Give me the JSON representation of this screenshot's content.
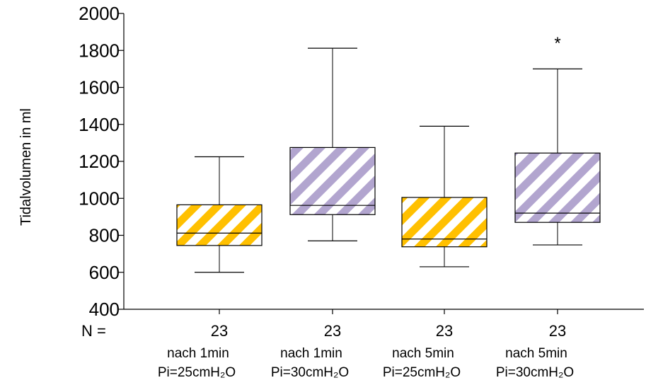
{
  "chart_data": {
    "type": "boxplot",
    "ylabel": "Tidalvolumen in ml",
    "ylim": [
      400,
      2000
    ],
    "yticks": [
      400,
      600,
      800,
      1000,
      1200,
      1400,
      1600,
      1800,
      2000
    ],
    "n_label": "N =",
    "groups": [
      {
        "line1": "nach 1min",
        "line2": "Pi=25cmH₂O",
        "n": "23",
        "pattern": "yellow",
        "whisker_low": 600,
        "q1": 745,
        "median": 812,
        "q3": 965,
        "whisker_high": 1225,
        "outliers": []
      },
      {
        "line1": "nach 1min",
        "line2": "Pi=30cmH₂O",
        "n": "23",
        "pattern": "purple",
        "whisker_low": 770,
        "q1": 912,
        "median": 962,
        "q3": 1275,
        "whisker_high": 1812,
        "outliers": []
      },
      {
        "line1": "nach 5min",
        "line2": "Pi=25cmH₂O",
        "n": "23",
        "pattern": "yellow",
        "whisker_low": 630,
        "q1": 738,
        "median": 780,
        "q3": 1005,
        "whisker_high": 1390,
        "outliers": []
      },
      {
        "line1": "nach 5min",
        "line2": "Pi=30cmH₂O",
        "n": "23",
        "pattern": "purple",
        "whisker_low": 748,
        "q1": 870,
        "median": 920,
        "q3": 1245,
        "whisker_high": 1700,
        "outliers": [
          {
            "value": 1870,
            "symbol": "*"
          }
        ]
      }
    ],
    "colors": {
      "yellow": "#FFC000",
      "purple": "#B2A5CF",
      "axis": "#000000"
    }
  }
}
